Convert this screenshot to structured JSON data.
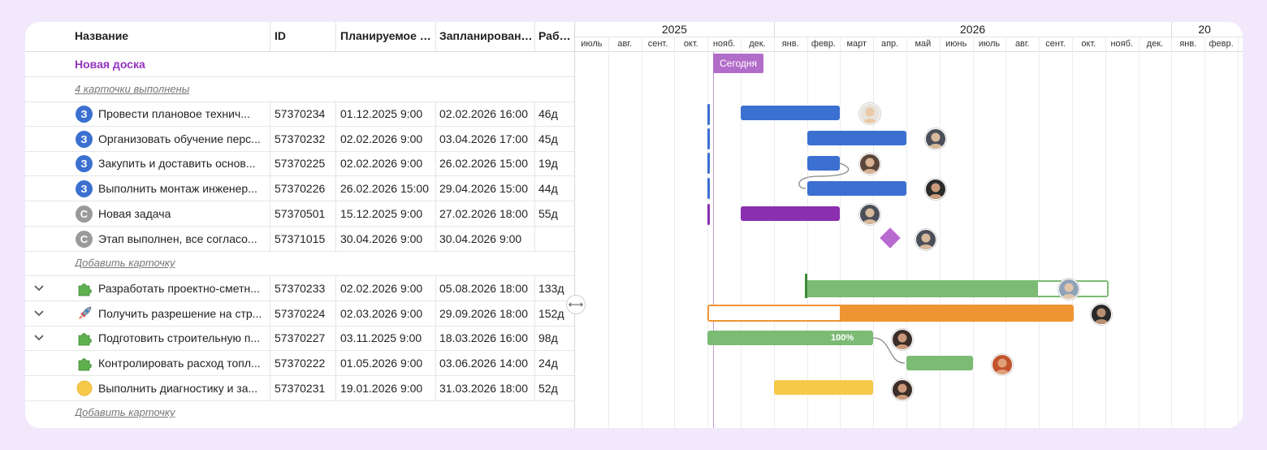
{
  "columns": {
    "name": "Название",
    "id": "ID",
    "planned_start": "Планируемое н...",
    "scheduled_end": "Запланированн...",
    "workdays": "Рабоча"
  },
  "board": {
    "title": "Новая доска",
    "done_link": "4 карточки выполнены",
    "add_card_1": "Добавить карточку",
    "add_card_2": "Добавить карточку"
  },
  "rows": [
    {
      "badge": "З",
      "title": "Провести плановое технич...",
      "id": "57370234",
      "start": "01.12.2025 9:00",
      "end": "02.02.2026 16:00",
      "dur": "46д"
    },
    {
      "badge": "З",
      "title": "Организовать обучение перс...",
      "id": "57370232",
      "start": "02.02.2026 9:00",
      "end": "03.04.2026 17:00",
      "dur": "45д"
    },
    {
      "badge": "З",
      "title": "Закупить и доставить основ...",
      "id": "57370225",
      "start": "02.02.2026 9:00",
      "end": "26.02.2026 15:00",
      "dur": "19д"
    },
    {
      "badge": "З",
      "title": "Выполнить монтаж инженер...",
      "id": "57370226",
      "start": "26.02.2026 15:00",
      "end": "29.04.2026 15:00",
      "dur": "44д"
    },
    {
      "badge": "С",
      "title": "Новая задача",
      "id": "57370501",
      "start": "15.12.2025 9:00",
      "end": "27.02.2026 18:00",
      "dur": "55д"
    },
    {
      "badge": "С",
      "title": "Этап выполнен, все согласо...",
      "id": "57371015",
      "start": "30.04.2026 9:00",
      "end": "30.04.2026 9:00",
      "dur": ""
    }
  ],
  "rows2": [
    {
      "title": "Разработать проектно-сметн...",
      "id": "57370233",
      "start": "02.02.2026 9:00",
      "end": "05.08.2026 18:00",
      "dur": "133д"
    },
    {
      "title": "Получить разрешение на стр...",
      "id": "57370224",
      "start": "02.03.2026 9:00",
      "end": "29.09.2026 18:00",
      "dur": "152д"
    },
    {
      "title": "Подготовить строительную п...",
      "id": "57370227",
      "start": "03.11.2025 9:00",
      "end": "18.03.2026 16:00",
      "dur": "98д"
    },
    {
      "title": "Контролировать расход топл...",
      "id": "57370222",
      "start": "01.05.2026 9:00",
      "end": "03.06.2026 14:00",
      "dur": "24д"
    },
    {
      "title": "Выполнить диагностику и за...",
      "id": "57370231",
      "start": "19.01.2026 9:00",
      "end": "31.03.2026 18:00",
      "dur": "52д"
    }
  ],
  "timeline": {
    "years": [
      "2025",
      "2026",
      "20"
    ],
    "months": [
      "июль",
      "авг.",
      "сент.",
      "окт.",
      "нояб.",
      "дек.",
      "янв.",
      "февр.",
      "март",
      "апр.",
      "май",
      "июнь",
      "июль",
      "авг.",
      "сент.",
      "окт.",
      "нояб.",
      "дек.",
      "янв.",
      "февр."
    ],
    "today_label": "Сегодня",
    "progress_label": "100%"
  },
  "colors": {
    "blue": "#3b70d1",
    "purple": "#8a2fb0",
    "green": "#7cbb74",
    "orange": "#ef9433",
    "yellow": "#f7c948",
    "today": "#b26cc9",
    "diamond": "#b86ad0"
  },
  "icons": {
    "expand": "chevron-down-icon",
    "resize": "resize-horizontal-icon",
    "puzzle": "puzzle-icon",
    "rocket": "rocket-icon",
    "circle": "yellow-circle-icon"
  }
}
